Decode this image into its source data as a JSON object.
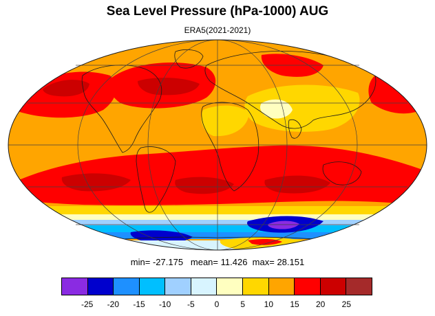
{
  "title": "Sea Level Pressure (hPa-1000) AUG",
  "subtitle": "ERA5(2021-2021)",
  "stats": {
    "min_label": "min=",
    "min_value": "-27.175",
    "mean_label": "mean=",
    "mean_value": "11.426",
    "max_label": "max=",
    "max_value": "28.151"
  },
  "projection": "mollweide",
  "colorbar": {
    "colors": [
      "#8a2be2",
      "#0000cd",
      "#1e90ff",
      "#00bfff",
      "#a0d0ff",
      "#d8f4ff",
      "#ffffc0",
      "#ffd700",
      "#ffa500",
      "#ff0000",
      "#cc0000",
      "#a52a2a"
    ],
    "labels": [
      "-25",
      "-20",
      "-15",
      "-10",
      "-5",
      "0",
      "5",
      "10",
      "15",
      "20",
      "25"
    ]
  },
  "colors": {
    "background_fill": "#ffa500",
    "high_bands": "#ff0000",
    "strong_high": "#cc0000",
    "low_pressure": "#0000cd",
    "coastline": "#1a1a1a",
    "gridline": "#404040"
  }
}
